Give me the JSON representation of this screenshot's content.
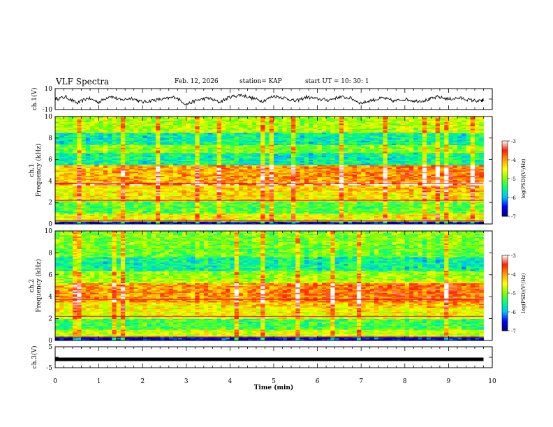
{
  "header": {
    "title": "VLF Spectra",
    "date": "Feb. 12, 2026",
    "station": "station= KAP",
    "start_time": "start  UT  =   10: 30: 1"
  },
  "chart_data": {
    "type": "heatmap",
    "title": "VLF Spectra",
    "xlabel": "Time  (min)",
    "xlim": [
      0,
      10
    ],
    "x_ticks": [
      "0",
      "1",
      "2",
      "3",
      "4",
      "5",
      "6",
      "7",
      "8",
      "9",
      "10"
    ],
    "panels": [
      {
        "id": "ch1-waveform",
        "type": "line",
        "ylabel": "ch.1(V)",
        "ylim": [
          -10,
          10
        ],
        "y_ticks": [
          "10",
          "-10"
        ],
        "x": [
          0,
          0.25,
          0.5,
          0.75,
          1,
          1.25,
          1.5,
          1.75,
          2,
          2.25,
          2.5,
          2.75,
          3,
          3.25,
          3.5,
          3.75,
          4,
          4.25,
          4.5,
          4.75,
          5,
          5.25,
          5.5,
          5.75,
          6,
          6.25,
          6.5,
          6.75,
          7,
          7.25,
          7.5,
          7.75,
          8,
          8.25,
          8.5,
          8.75,
          9,
          9.25,
          9.5,
          9.75,
          9.8
        ],
        "values": [
          0,
          2,
          -4,
          1,
          -3,
          3,
          -1,
          1,
          -3,
          -1,
          0,
          2,
          -5,
          -1,
          1,
          -3,
          2,
          4,
          1,
          -2,
          3,
          1,
          -2,
          2,
          0,
          -1,
          2,
          1,
          -4,
          -1,
          1,
          -2,
          0,
          -2,
          -1,
          2,
          0,
          1,
          -1,
          -2,
          -1
        ]
      },
      {
        "id": "ch1-spectrogram",
        "type": "heatmap",
        "ylabel": "ch.1\nFrequency  (kHz)",
        "ylim": [
          0,
          10
        ],
        "y_ticks": [
          "0",
          "2",
          "4",
          "6",
          "8",
          "10"
        ],
        "z_units": "log(PSD)(V²/Hz)",
        "bands_khz": [
          {
            "f0": 0.0,
            "f1": 0.3,
            "level": -6.5
          },
          {
            "f0": 0.3,
            "f1": 1.0,
            "level": -4.5
          },
          {
            "f0": 1.0,
            "f1": 2.1,
            "level": -5.2
          },
          {
            "f0": 2.1,
            "f1": 3.0,
            "level": -4.4
          },
          {
            "f0": 3.0,
            "f1": 3.6,
            "level": -4.5
          },
          {
            "f0": 3.6,
            "f1": 3.9,
            "level": -3.5
          },
          {
            "f0": 3.9,
            "f1": 5.5,
            "level": -4.2
          },
          {
            "f0": 5.5,
            "f1": 6.6,
            "level": -5.6
          },
          {
            "f0": 6.6,
            "f1": 7.4,
            "level": -5.0
          },
          {
            "f0": 7.4,
            "f1": 8.5,
            "level": -5.6
          },
          {
            "f0": 8.5,
            "f1": 10.0,
            "level": -4.8
          }
        ]
      },
      {
        "id": "ch2-spectrogram",
        "type": "heatmap",
        "ylabel": "ch.2\nFrequency  (kHz)",
        "ylim": [
          0,
          10
        ],
        "y_ticks": [
          "0",
          "2",
          "4",
          "6",
          "8",
          "10"
        ],
        "z_units": "log(PSD)(V²/Hz)",
        "bands_khz": [
          {
            "f0": 0.0,
            "f1": 0.4,
            "level": -6.6
          },
          {
            "f0": 0.4,
            "f1": 1.0,
            "level": -4.7
          },
          {
            "f0": 1.0,
            "f1": 2.0,
            "level": -5.3
          },
          {
            "f0": 2.0,
            "f1": 3.5,
            "level": -4.5
          },
          {
            "f0": 3.5,
            "f1": 5.2,
            "level": -4.1
          },
          {
            "f0": 5.2,
            "f1": 6.4,
            "level": -4.9
          },
          {
            "f0": 6.4,
            "f1": 7.6,
            "level": -5.6
          },
          {
            "f0": 7.6,
            "f1": 8.8,
            "level": -5.1
          },
          {
            "f0": 8.8,
            "f1": 10.0,
            "level": -5.0
          }
        ]
      },
      {
        "id": "ch3-waveform",
        "type": "line",
        "ylabel": "ch.3(V)",
        "ylim": [
          -5,
          5
        ],
        "y_ticks": [
          "5",
          "-5"
        ],
        "x": [
          0,
          9.8
        ],
        "values": [
          -1,
          -1
        ]
      }
    ],
    "colorbar": {
      "label": "log(PSD)(V²/Hz)",
      "range": [
        -7,
        -3
      ],
      "ticks": [
        "-3",
        "-4",
        "-5",
        "-6",
        "-7"
      ],
      "colors": [
        "#000080",
        "#0000ff",
        "#00c0ff",
        "#00ff80",
        "#80ff00",
        "#ffff00",
        "#ffa000",
        "#ff2000",
        "#ffffff"
      ]
    }
  }
}
